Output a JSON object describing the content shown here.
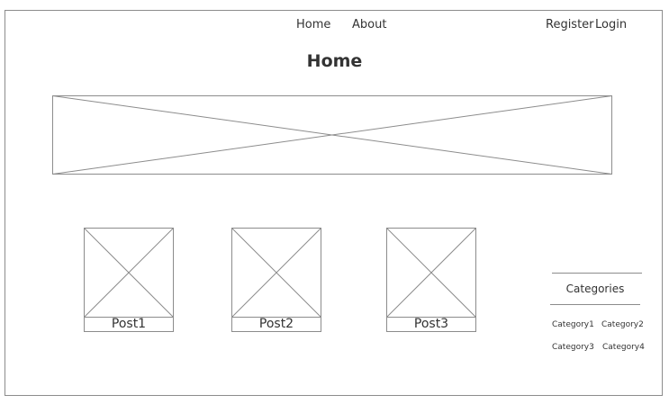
{
  "nav": {
    "home": "Home",
    "about": "About",
    "register": "Register",
    "login": "Login"
  },
  "page": {
    "title": "Home"
  },
  "posts": [
    {
      "label": "Post1"
    },
    {
      "label": "Post2"
    },
    {
      "label": "Post3"
    }
  ],
  "sidebar": {
    "title": "Categories",
    "items": [
      {
        "label": "Category1"
      },
      {
        "label": "Category2"
      },
      {
        "label": "Category3"
      },
      {
        "label": "Category4"
      }
    ]
  },
  "colors": {
    "line": "#8c8c8c",
    "text": "#333333",
    "background": "#ffffff"
  }
}
